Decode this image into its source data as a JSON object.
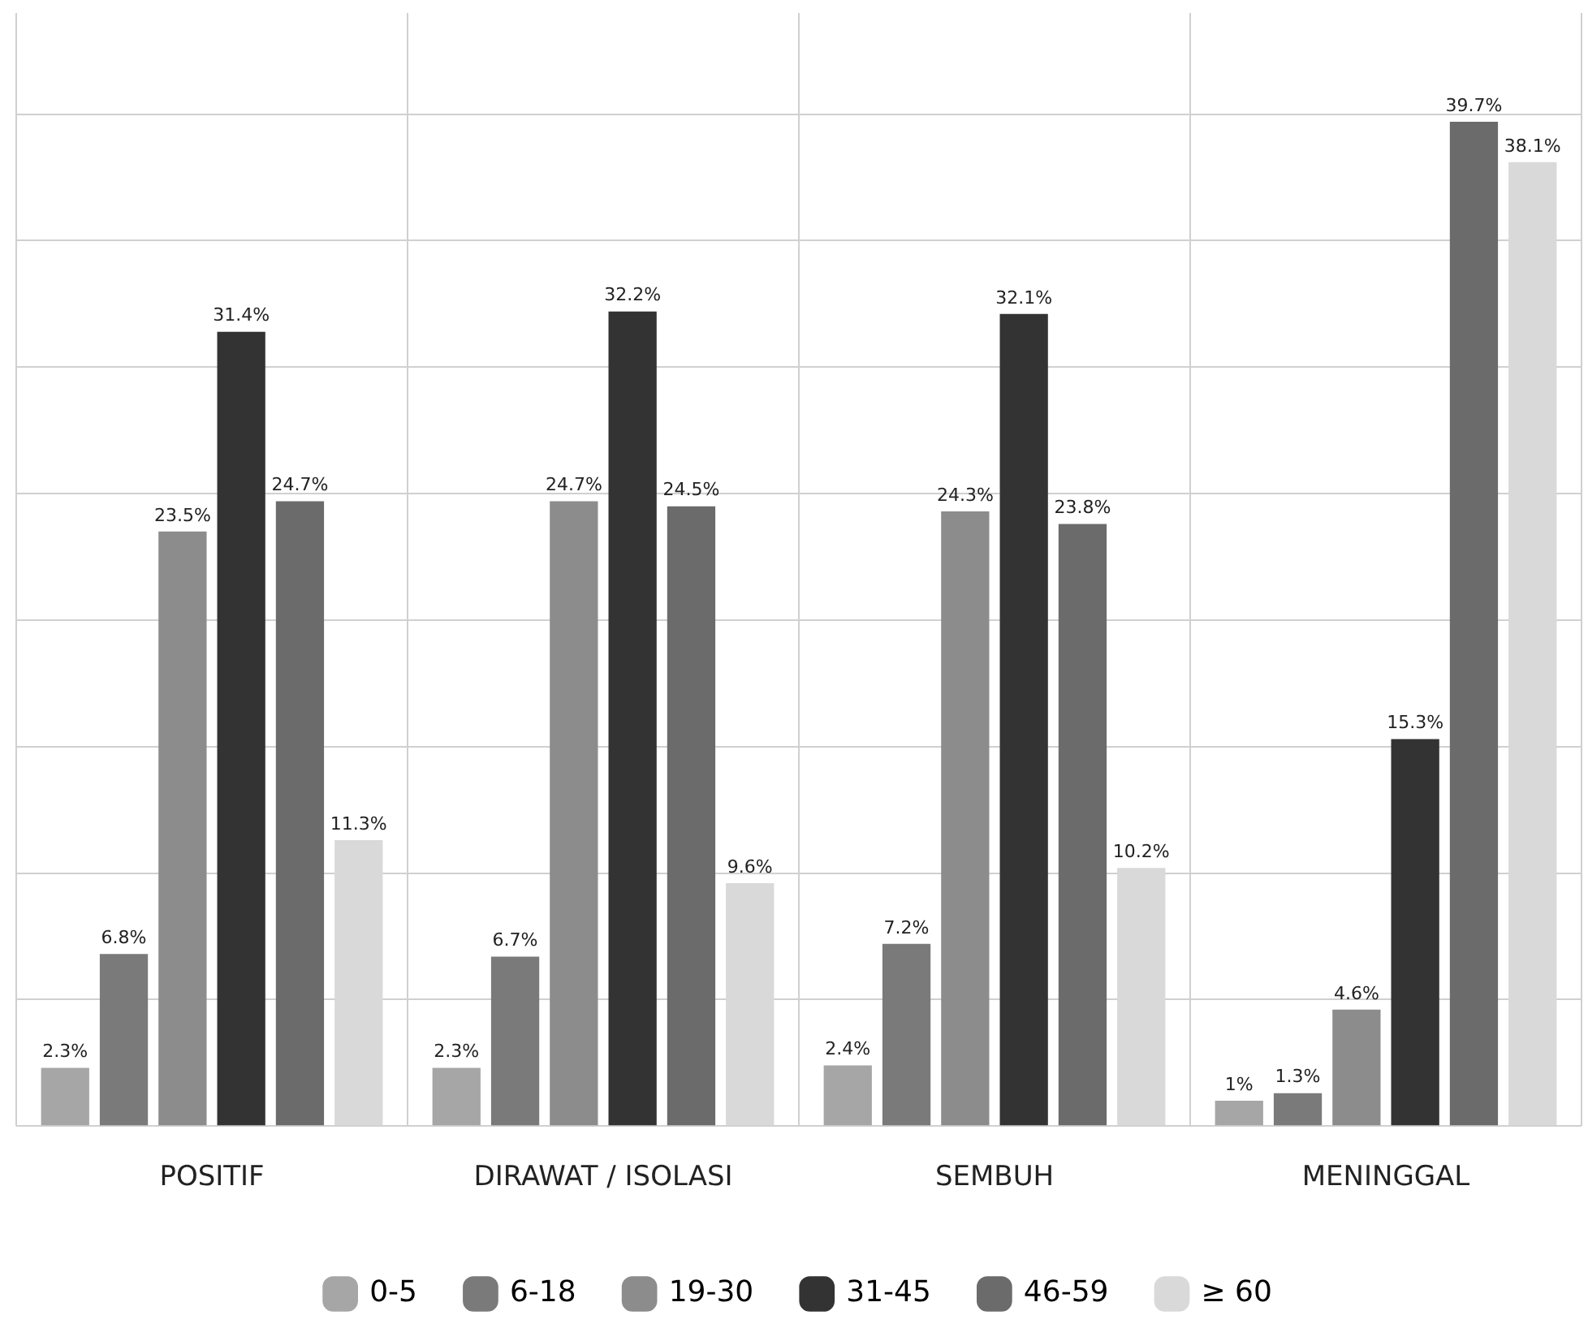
{
  "chart_data": {
    "type": "bar",
    "categories": [
      "POSITIF",
      "DIRAWAT / ISOLASI",
      "SEMBUH",
      "MENINGGAL"
    ],
    "series": [
      {
        "name": "0-5",
        "color": "#a6a6a6",
        "values": [
          2.3,
          2.3,
          2.4,
          1
        ],
        "value_labels": [
          "2.3%",
          "2.3%",
          "2.4%",
          "1%"
        ]
      },
      {
        "name": "6-18",
        "color": "#7a7a7a",
        "values": [
          6.8,
          6.7,
          7.2,
          1.3
        ],
        "value_labels": [
          "6.8%",
          "6.7%",
          "7.2%",
          "1.3%"
        ]
      },
      {
        "name": "19-30",
        "color": "#8c8c8c",
        "values": [
          23.5,
          24.7,
          24.3,
          4.6
        ],
        "value_labels": [
          "23.5%",
          "24.7%",
          "24.3%",
          "4.6%"
        ]
      },
      {
        "name": "31-45",
        "color": "#333333",
        "values": [
          31.4,
          32.2,
          32.1,
          15.3
        ],
        "value_labels": [
          "31.4%",
          "32.2%",
          "32.1%",
          "15.3%"
        ]
      },
      {
        "name": "46-59",
        "color": "#6b6b6b",
        "values": [
          24.7,
          24.5,
          23.8,
          39.7
        ],
        "value_labels": [
          "24.7%",
          "24.5%",
          "23.8%",
          "39.7%"
        ]
      },
      {
        "name": "≥ 60",
        "color": "#d9d9d9",
        "values": [
          11.3,
          9.6,
          10.2,
          38.1
        ],
        "value_labels": [
          "11.3%",
          "9.6%",
          "10.2%",
          "38.1%"
        ]
      }
    ],
    "ylim": [
      0,
      44
    ],
    "yticks": [
      {
        "value": 0,
        "label": null
      },
      {
        "value": 5,
        "label": null
      },
      {
        "value": 10,
        "label": null
      },
      {
        "value": 15,
        "label": null
      },
      {
        "value": 20,
        "label": null
      },
      {
        "value": 25,
        "label": null
      },
      {
        "value": 30,
        "label": null
      },
      {
        "value": 35,
        "label": null
      },
      {
        "value": 40,
        "label": null
      }
    ],
    "tick_labels": "x",
    "grid": true,
    "legend": "bottom"
  }
}
